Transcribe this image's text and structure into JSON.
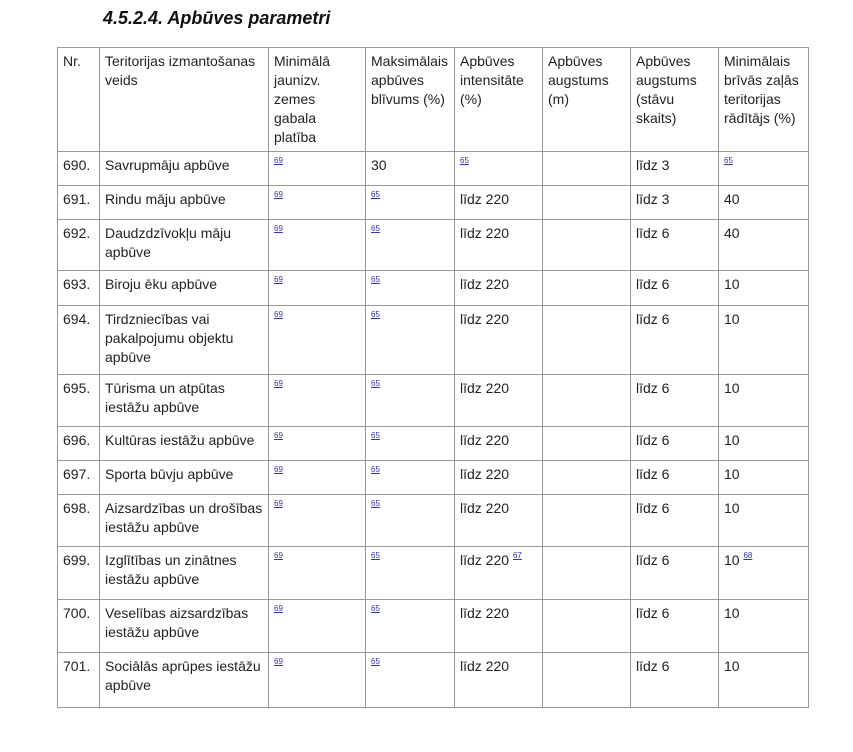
{
  "title": "4.5.2.4. Apbūves parametri",
  "columns": [
    "Nr.",
    "Teritorijas izmantošanas veids",
    "Minimālā jaunizv. zemes gabala platība",
    "Maksimālais apbūves blīvums (%)",
    "Apbūves intensitāte (%)",
    "Apbūves augstums (m)",
    "Apbūves augstums (stāvu skaits)",
    "Minimālais brīvās zaļās teritorijas rādītājs (%)"
  ],
  "rows": [
    {
      "nr": "690.",
      "use": "Savrupmāju apbūve",
      "min_area_ref": "69",
      "density": "30",
      "density_ref": "",
      "intensity": "",
      "intensity_ref": "65",
      "height_m": "",
      "floors": "līdz 3",
      "green": "",
      "green_ref": "65"
    },
    {
      "nr": "691.",
      "use": "Rindu māju apbūve",
      "min_area_ref": "69",
      "density": "",
      "density_ref": "65",
      "intensity": "līdz 220",
      "intensity_ref": "",
      "height_m": "",
      "floors": "līdz 3",
      "green": "40",
      "green_ref": ""
    },
    {
      "nr": "692.",
      "use": "Daudzdzīvokļu māju apbūve",
      "min_area_ref": "69",
      "density": "",
      "density_ref": "65",
      "intensity": "līdz 220",
      "intensity_ref": "",
      "height_m": "",
      "floors": "līdz 6",
      "green": "40",
      "green_ref": ""
    },
    {
      "nr": "693.",
      "use": "Biroju ēku apbūve",
      "min_area_ref": "69",
      "density": "",
      "density_ref": "65",
      "intensity": "līdz 220",
      "intensity_ref": "",
      "height_m": "",
      "floors": "līdz 6",
      "green": "10",
      "green_ref": ""
    },
    {
      "nr": "694.",
      "use": "Tirdzniecības vai pakalpojumu objektu apbūve",
      "min_area_ref": "69",
      "density": "",
      "density_ref": "65",
      "intensity": "līdz 220",
      "intensity_ref": "",
      "height_m": "",
      "floors": "līdz 6",
      "green": "10",
      "green_ref": ""
    },
    {
      "nr": "695.",
      "use": "Tūrisma un atpūtas iestāžu apbūve",
      "min_area_ref": "69",
      "density": "",
      "density_ref": "65",
      "intensity": "līdz 220",
      "intensity_ref": "",
      "height_m": "",
      "floors": "līdz 6",
      "green": "10",
      "green_ref": ""
    },
    {
      "nr": "696.",
      "use": "Kultūras iestāžu apbūve",
      "min_area_ref": "69",
      "density": "",
      "density_ref": "65",
      "intensity": "līdz 220",
      "intensity_ref": "",
      "height_m": "",
      "floors": "līdz 6",
      "green": "10",
      "green_ref": ""
    },
    {
      "nr": "697.",
      "use": "Sporta būvju apbūve",
      "min_area_ref": "69",
      "density": "",
      "density_ref": "65",
      "intensity": "līdz 220",
      "intensity_ref": "",
      "height_m": "",
      "floors": "līdz 6",
      "green": "10",
      "green_ref": ""
    },
    {
      "nr": "698.",
      "use": "Aizsardzības un drošības iestāžu apbūve",
      "min_area_ref": "69",
      "density": "",
      "density_ref": "65",
      "intensity": "līdz 220",
      "intensity_ref": "",
      "height_m": "",
      "floors": "līdz 6",
      "green": "10",
      "green_ref": ""
    },
    {
      "nr": "699.",
      "use": "Izglītības un zinātnes iestāžu apbūve",
      "min_area_ref": "69",
      "density": "",
      "density_ref": "65",
      "intensity": "līdz 220",
      "intensity_ref": "67",
      "height_m": "",
      "floors": "līdz 6",
      "green": "10",
      "green_ref": "68"
    },
    {
      "nr": "700.",
      "use": "Veselības aizsardzības iestāžu apbūve",
      "min_area_ref": "69",
      "density": "",
      "density_ref": "65",
      "intensity": "līdz 220",
      "intensity_ref": "",
      "height_m": "",
      "floors": "līdz 6",
      "green": "10",
      "green_ref": ""
    },
    {
      "nr": "701.",
      "use": "Sociālās aprūpes iestāžu apbūve",
      "min_area_ref": "69",
      "density": "",
      "density_ref": "65",
      "intensity": "līdz 220",
      "intensity_ref": "",
      "height_m": "",
      "floors": "līdz 6",
      "green": "10",
      "green_ref": ""
    }
  ]
}
